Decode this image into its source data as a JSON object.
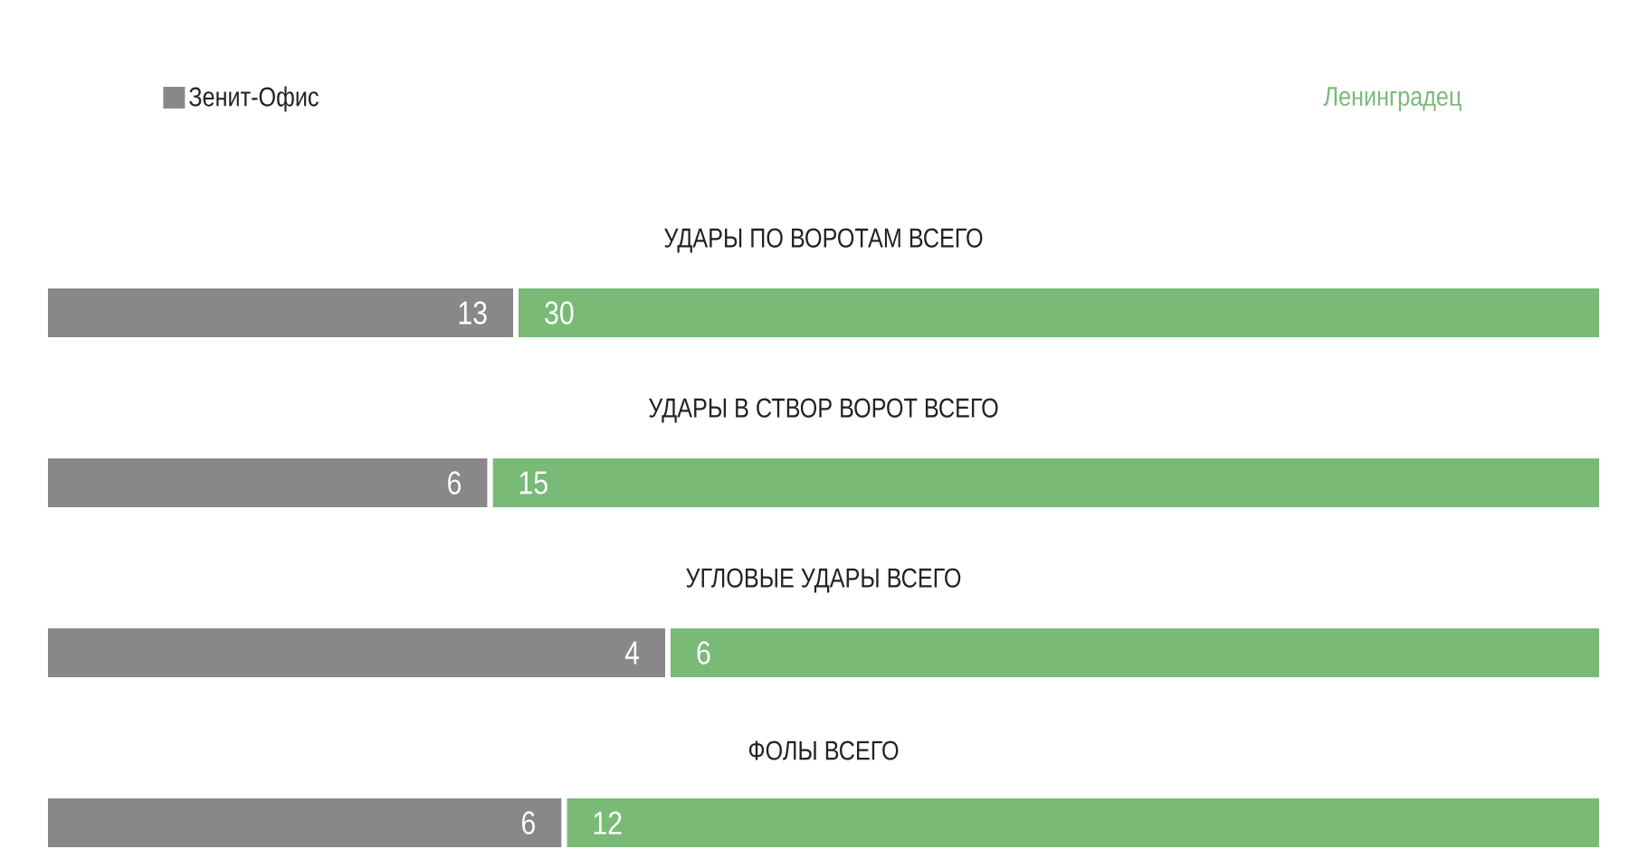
{
  "chart_data": [
    {
      "type": "bar",
      "orientation": "horizontal",
      "stacked": true,
      "title": "УДАРЫ ПО ВОРОТАМ ВСЕГО",
      "categories": [
        null
      ],
      "series": [
        {
          "name": "Зенит-Офис",
          "color": "#888888",
          "values": [
            13
          ]
        },
        {
          "name": "Ленинградец",
          "color": "#78ba76",
          "values": [
            30
          ]
        }
      ],
      "data_labels": true,
      "legend": "top"
    },
    {
      "type": "bar",
      "orientation": "horizontal",
      "stacked": true,
      "title": "УДАРЫ В СТВОР ВОРОТ ВСЕГО",
      "categories": [
        null
      ],
      "series": [
        {
          "color": "#888888",
          "values": [
            6
          ]
        },
        {
          "color": "#78ba76",
          "values": [
            15
          ]
        }
      ],
      "data_labels": true
    },
    {
      "type": "bar",
      "orientation": "horizontal",
      "stacked": true,
      "title": "УГЛОВЫЕ УДАРЫ ВСЕГО",
      "categories": [
        null
      ],
      "series": [
        {
          "color": "#888888",
          "values": [
            4
          ]
        },
        {
          "color": "#78ba76",
          "values": [
            6
          ]
        }
      ],
      "data_labels": true
    },
    {
      "type": "bar",
      "orientation": "horizontal",
      "stacked": true,
      "title": "ФОЛЫ ВСЕГО",
      "categories": [
        null
      ],
      "series": [
        {
          "color": "#888888",
          "values": [
            6
          ]
        },
        {
          "color": "#78ba76",
          "values": [
            12
          ]
        }
      ],
      "data_labels": true
    }
  ]
}
